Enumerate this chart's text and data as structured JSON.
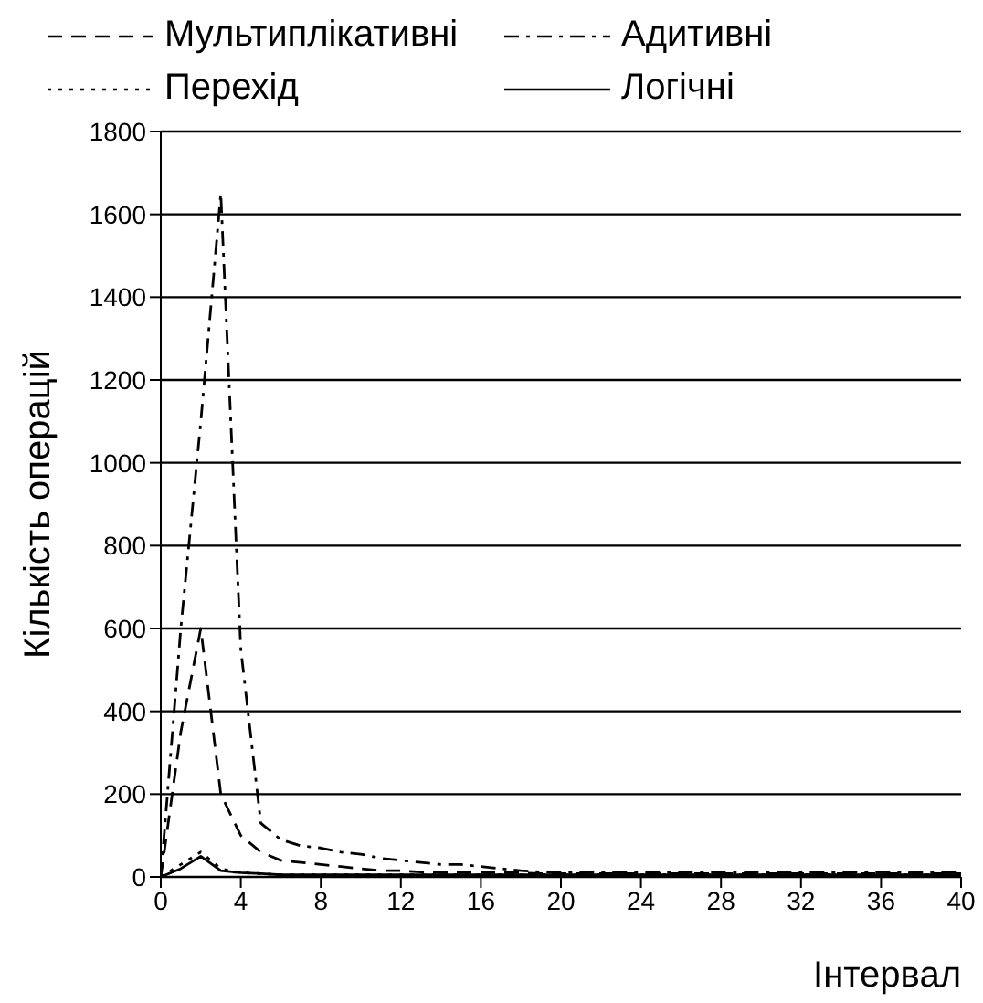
{
  "chart_data": {
    "type": "line",
    "xlabel": "Інтервал",
    "ylabel": "Кількість операцій",
    "x": [
      0,
      1,
      2,
      3,
      4,
      5,
      6,
      7,
      8,
      9,
      10,
      11,
      12,
      13,
      14,
      15,
      16,
      17,
      18,
      19,
      20,
      21,
      22,
      23,
      24,
      25,
      26,
      27,
      28,
      29,
      30,
      31,
      32,
      33,
      34,
      35,
      36,
      37,
      38,
      39,
      40
    ],
    "series": [
      {
        "name": "Мультиплікативні",
        "color": "#000000",
        "line_style": "dashed",
        "values": [
          0,
          350,
          600,
          200,
          100,
          60,
          40,
          35,
          30,
          25,
          20,
          15,
          15,
          12,
          10,
          10,
          10,
          10,
          10,
          8,
          8,
          8,
          8,
          8,
          8,
          8,
          8,
          8,
          8,
          8,
          8,
          8,
          8,
          8,
          8,
          8,
          8,
          8,
          8,
          8,
          8
        ]
      },
      {
        "name": "Адитивні",
        "color": "#000000",
        "line_style": "dashdot",
        "values": [
          0,
          600,
          1100,
          1650,
          550,
          130,
          90,
          75,
          70,
          60,
          55,
          45,
          40,
          35,
          30,
          30,
          25,
          20,
          15,
          12,
          10,
          10,
          10,
          10,
          10,
          10,
          10,
          10,
          10,
          10,
          10,
          10,
          10,
          10,
          10,
          10,
          10,
          10,
          10,
          10,
          10
        ]
      },
      {
        "name": "Перехід",
        "color": "#000000",
        "line_style": "dotted",
        "values": [
          0,
          30,
          60,
          20,
          10,
          8,
          5,
          5,
          5,
          5,
          5,
          5,
          5,
          5,
          5,
          5,
          5,
          5,
          5,
          5,
          5,
          5,
          5,
          5,
          5,
          5,
          5,
          5,
          5,
          5,
          5,
          5,
          5,
          5,
          5,
          5,
          5,
          5,
          5,
          5,
          5
        ]
      },
      {
        "name": "Логічні",
        "color": "#000000",
        "line_style": "solid",
        "values": [
          0,
          20,
          50,
          15,
          10,
          8,
          5,
          5,
          5,
          5,
          5,
          5,
          5,
          5,
          5,
          5,
          5,
          5,
          5,
          5,
          5,
          5,
          5,
          5,
          5,
          5,
          5,
          5,
          5,
          5,
          5,
          5,
          5,
          5,
          5,
          5,
          5,
          5,
          5,
          5,
          5
        ]
      }
    ],
    "xlim": [
      0,
      40
    ],
    "xticks": [
      0,
      4,
      8,
      12,
      16,
      20,
      24,
      28,
      32,
      36,
      40
    ],
    "ylim": [
      0,
      1800
    ],
    "yticks": [
      0,
      200,
      400,
      600,
      800,
      1000,
      1200,
      1400,
      1600,
      1800
    ],
    "grid": "y",
    "legend": "top",
    "marker": "none"
  }
}
